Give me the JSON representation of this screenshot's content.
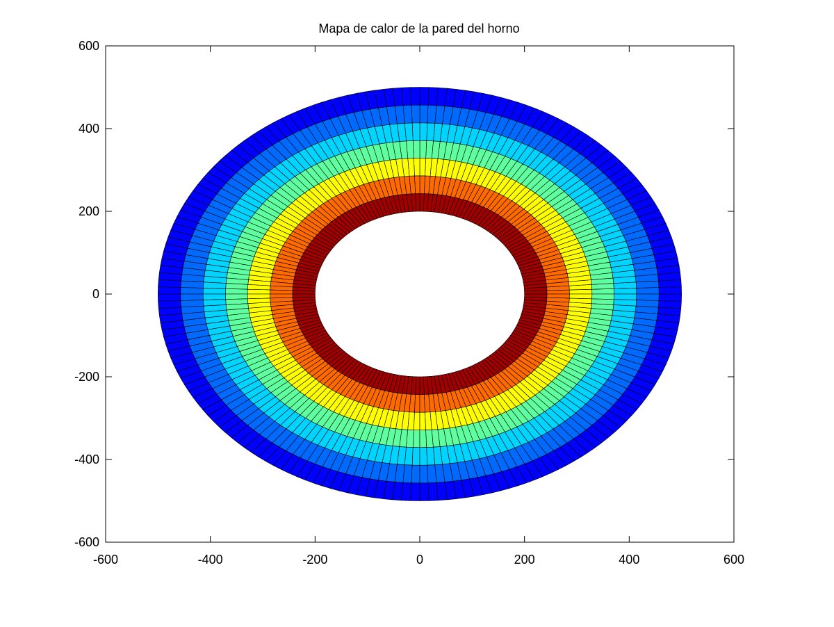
{
  "chart_data": {
    "type": "heatmap",
    "title": "Mapa de calor de la pared del horno",
    "xlabel": "",
    "ylabel": "",
    "xlim": [
      -600,
      600
    ],
    "ylim": [
      -600,
      600
    ],
    "xticks": [
      -600,
      -400,
      -200,
      0,
      200,
      400,
      600
    ],
    "yticks": [
      -600,
      -400,
      -200,
      0,
      200,
      400,
      600
    ],
    "xtick_labels": [
      "-600",
      "-400",
      "-200",
      "0",
      "200",
      "400",
      "600"
    ],
    "ytick_labels": [
      "-600",
      "-400",
      "-200",
      "0",
      "200",
      "400",
      "600"
    ],
    "grid": false,
    "shape": "annulus",
    "center": [
      0,
      0
    ],
    "inner_radius": 200,
    "outer_radius": 500,
    "radial_band_edges": [
      200,
      243,
      286,
      329,
      371,
      414,
      457,
      500
    ],
    "band_colors": [
      "#a00000",
      "#ff6a00",
      "#ffff00",
      "#5fffa0",
      "#00d4ff",
      "#006aff",
      "#0000ff"
    ],
    "angular_divisions": 180
  }
}
